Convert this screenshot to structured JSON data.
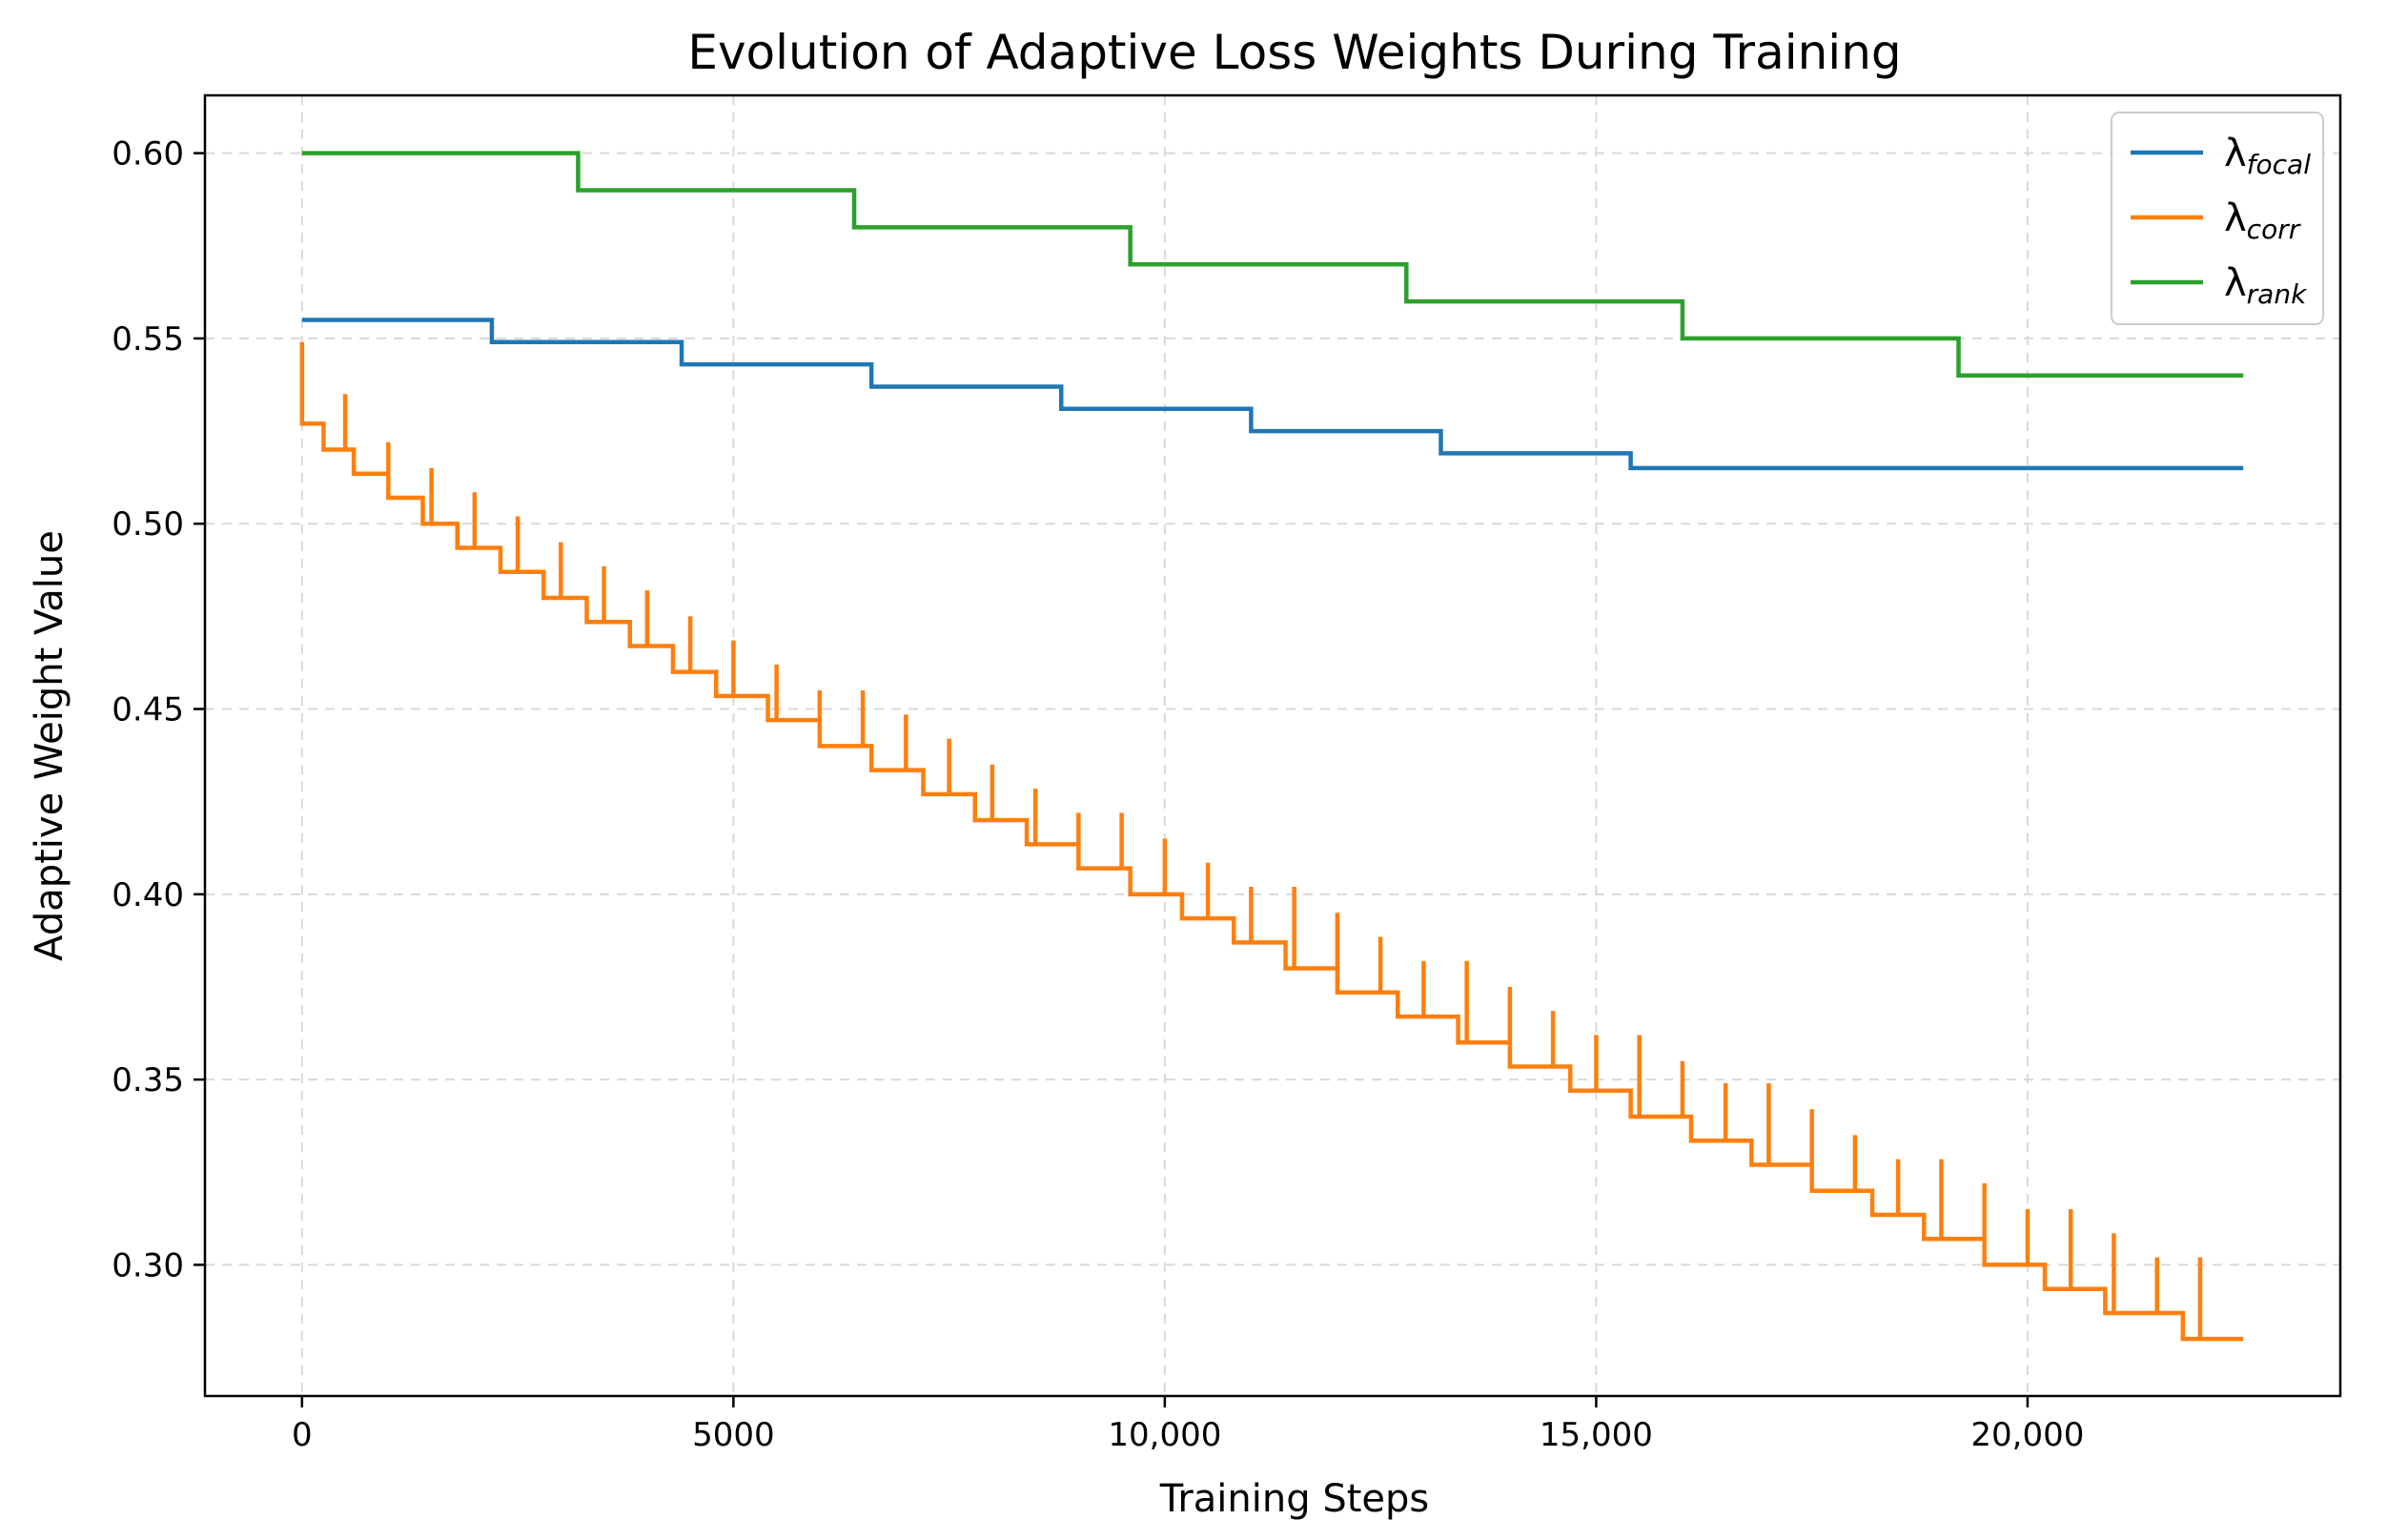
{
  "chart_data": {
    "type": "line",
    "title": "Evolution of Adaptive Loss Weights During Training",
    "xlabel": "Training Steps",
    "ylabel": "Adaptive Weight Value",
    "xlim": [
      -1125,
      23625
    ],
    "ylim": [
      0.2646,
      0.6156
    ],
    "grid": true,
    "legend_position": "top-right",
    "x_ticks": [
      0,
      5000,
      10000,
      15000,
      20000
    ],
    "x_tick_labels": [
      "0",
      "5000",
      "10,000",
      "15,000",
      "20,000"
    ],
    "y_ticks": [
      0.3,
      0.35,
      0.4,
      0.45,
      0.5,
      0.55,
      0.6
    ],
    "y_tick_labels": [
      "0.30",
      "0.35",
      "0.40",
      "0.45",
      "0.50",
      "0.55",
      "0.60"
    ],
    "series": [
      {
        "name": "λ_focal",
        "legend_symbol": "λ",
        "legend_sub": "focal",
        "color": "#1f77b4",
        "steps": [
          [
            0,
            0.555
          ],
          [
            2200,
            0.549
          ],
          [
            4400,
            0.543
          ],
          [
            6600,
            0.537
          ],
          [
            8800,
            0.531
          ],
          [
            11000,
            0.525
          ],
          [
            13200,
            0.519
          ],
          [
            15400,
            0.515
          ]
        ],
        "x_end": 22500
      },
      {
        "name": "λ_corr",
        "legend_symbol": "λ",
        "legend_sub": "corr",
        "color": "#ff7f0e",
        "steps": [
          [
            0,
            0.527
          ],
          [
            250,
            0.52
          ],
          [
            600,
            0.5135
          ],
          [
            1000,
            0.507
          ],
          [
            1400,
            0.5
          ],
          [
            1800,
            0.4935
          ],
          [
            2300,
            0.487
          ],
          [
            2800,
            0.48
          ],
          [
            3300,
            0.4735
          ],
          [
            3800,
            0.467
          ],
          [
            4300,
            0.46
          ],
          [
            4800,
            0.4535
          ],
          [
            5400,
            0.447
          ],
          [
            6000,
            0.44
          ],
          [
            6600,
            0.4335
          ],
          [
            7200,
            0.427
          ],
          [
            7800,
            0.42
          ],
          [
            8400,
            0.4135
          ],
          [
            9000,
            0.407
          ],
          [
            9600,
            0.4
          ],
          [
            10200,
            0.3935
          ],
          [
            10800,
            0.387
          ],
          [
            11400,
            0.38
          ],
          [
            12000,
            0.3735
          ],
          [
            12700,
            0.367
          ],
          [
            13400,
            0.36
          ],
          [
            14000,
            0.3535
          ],
          [
            14700,
            0.347
          ],
          [
            15400,
            0.34
          ],
          [
            16100,
            0.3335
          ],
          [
            16800,
            0.327
          ],
          [
            17500,
            0.32
          ],
          [
            18200,
            0.3135
          ],
          [
            18800,
            0.307
          ],
          [
            19500,
            0.3
          ],
          [
            20200,
            0.2935
          ],
          [
            20900,
            0.287
          ],
          [
            21800,
            0.28
          ]
        ],
        "spikes": [
          [
            0,
            0.549
          ],
          [
            500,
            0.535
          ],
          [
            1000,
            0.522
          ],
          [
            1500,
            0.515
          ],
          [
            2000,
            0.5085
          ],
          [
            2500,
            0.502
          ],
          [
            3000,
            0.495
          ],
          [
            3500,
            0.4885
          ],
          [
            4000,
            0.482
          ],
          [
            4500,
            0.475
          ],
          [
            5000,
            0.4685
          ],
          [
            5500,
            0.462
          ],
          [
            6000,
            0.455
          ],
          [
            6500,
            0.455
          ],
          [
            7000,
            0.4485
          ],
          [
            7500,
            0.442
          ],
          [
            8000,
            0.435
          ],
          [
            8500,
            0.4285
          ],
          [
            9000,
            0.422
          ],
          [
            9500,
            0.422
          ],
          [
            10000,
            0.415
          ],
          [
            10500,
            0.4085
          ],
          [
            11000,
            0.402
          ],
          [
            11500,
            0.402
          ],
          [
            12000,
            0.395
          ],
          [
            12500,
            0.3885
          ],
          [
            13000,
            0.382
          ],
          [
            13500,
            0.382
          ],
          [
            14000,
            0.375
          ],
          [
            14500,
            0.3685
          ],
          [
            15000,
            0.362
          ],
          [
            15500,
            0.362
          ],
          [
            16000,
            0.355
          ],
          [
            16500,
            0.349
          ],
          [
            17000,
            0.349
          ],
          [
            17500,
            0.342
          ],
          [
            18000,
            0.335
          ],
          [
            18500,
            0.3285
          ],
          [
            19000,
            0.3285
          ],
          [
            19500,
            0.322
          ],
          [
            20000,
            0.315
          ],
          [
            20500,
            0.315
          ],
          [
            21000,
            0.3085
          ],
          [
            21500,
            0.302
          ],
          [
            22000,
            0.302
          ]
        ],
        "x_end": 22500
      },
      {
        "name": "λ_rank",
        "legend_symbol": "λ",
        "legend_sub": "rank",
        "color": "#2ca02c",
        "steps": [
          [
            0,
            0.6
          ],
          [
            3200,
            0.59
          ],
          [
            6400,
            0.58
          ],
          [
            9600,
            0.57
          ],
          [
            12800,
            0.56
          ],
          [
            16000,
            0.55
          ],
          [
            19200,
            0.54
          ]
        ],
        "x_end": 22500
      }
    ]
  }
}
